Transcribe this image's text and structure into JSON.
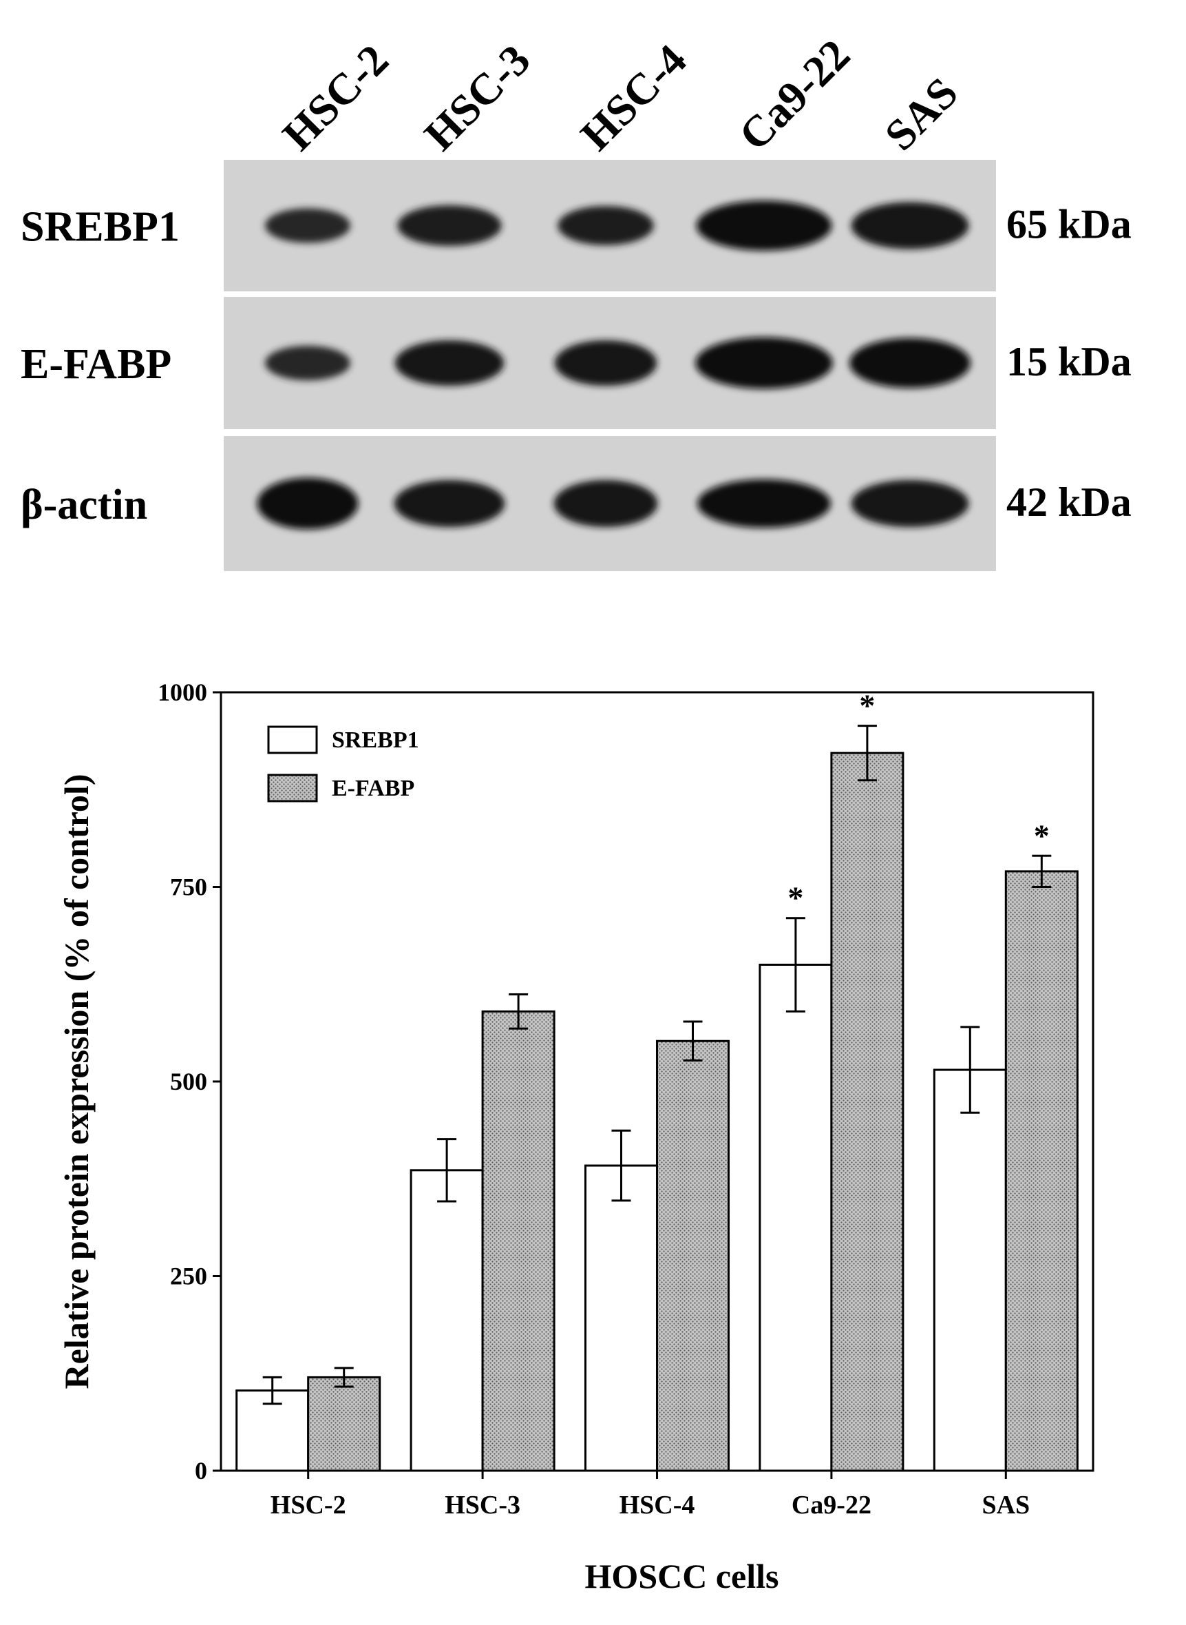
{
  "blot": {
    "lanes": [
      "HSC-2",
      "HSC-3",
      "HSC-4",
      "Ca9-22",
      "SAS"
    ],
    "rows": [
      {
        "protein": "SREBP1",
        "mw": "65 kDa",
        "intensity": [
          0.45,
          0.65,
          0.6,
          0.95,
          0.85
        ]
      },
      {
        "protein": "E-FABP",
        "mw": "15 kDa",
        "intensity": [
          0.45,
          0.8,
          0.8,
          1.0,
          0.95
        ]
      },
      {
        "protein": "β-actin",
        "mw": "42 kDa",
        "intensity": [
          1.0,
          0.85,
          0.85,
          0.9,
          0.85
        ]
      }
    ]
  },
  "chart_data": {
    "type": "bar",
    "categories": [
      "HSC-2",
      "HSC-3",
      "HSC-4",
      "Ca9-22",
      "SAS"
    ],
    "series": [
      {
        "name": "SREBP1",
        "values": [
          103,
          386,
          392,
          650,
          515
        ],
        "errors": [
          17,
          40,
          45,
          60,
          55
        ],
        "significant": [
          false,
          false,
          false,
          true,
          false
        ]
      },
      {
        "name": "E-FABP",
        "values": [
          120,
          590,
          552,
          922,
          770
        ],
        "errors": [
          12,
          22,
          25,
          35,
          20
        ],
        "significant": [
          false,
          false,
          false,
          true,
          true
        ]
      }
    ],
    "xlabel": "HOSCC cells",
    "ylabel": "Relative protein expression (% of control)",
    "ylim": [
      0,
      1000
    ],
    "yticks": [
      0,
      250,
      500,
      750,
      1000
    ],
    "significance_mark": "*",
    "legend_position": "top-left"
  }
}
